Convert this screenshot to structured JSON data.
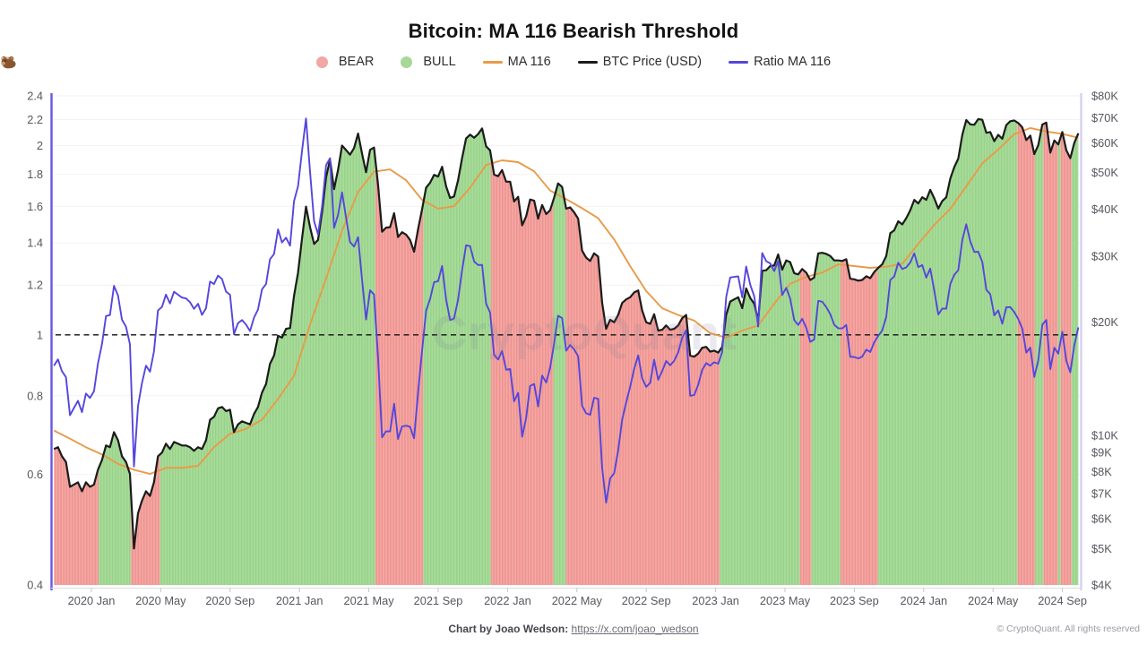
{
  "title": "Bitcoin: MA 116 Bearish Threshold",
  "watermark": "CryptoQuant",
  "legend": {
    "bear_label": "BEAR",
    "bull_label": "BULL",
    "ma_label": "MA 116",
    "price_label": "BTC Price (USD)",
    "ratio_label": "Ratio MA 116"
  },
  "footer": {
    "credit_bold": "Chart by Joao Wedson:",
    "credit_link": "https://x.com/joao_wedson",
    "copyright": "© CryptoQuant. All rights reserved"
  },
  "colors": {
    "bull_band": "#a9dc9c",
    "bull_band_stripe": "#98d289",
    "bear_band": "#f4a8a4",
    "bear_band_stripe": "#ee928f",
    "ma_line": "#e99a48",
    "price_line": "#1b1b1b",
    "ratio_line": "#5446dd",
    "threshold_line": "#111111",
    "left_axis": "#6556e4",
    "right_axis": "#d5d1f1",
    "x_axis_line": "#dcdce0",
    "tick_mark": "#c4c4ca",
    "grid": "#f2f2f5",
    "axis_text": "#57575f",
    "bear_dot": "#f2a6a6",
    "bull_dot": "#a8d79a"
  },
  "chart_data": {
    "type": "line",
    "title": "Bitcoin: MA 116 Bearish Threshold",
    "grid": "horizontal-only",
    "threshold": 1,
    "x_axis": {
      "ticks": [
        {
          "t": 2020.0,
          "label": "2020 Jan"
        },
        {
          "t": 2020.3333,
          "label": "2020 May"
        },
        {
          "t": 2020.6667,
          "label": "2020 Sep"
        },
        {
          "t": 2021.0,
          "label": "2021 Jan"
        },
        {
          "t": 2021.3333,
          "label": "2021 May"
        },
        {
          "t": 2021.6667,
          "label": "2021 Sep"
        },
        {
          "t": 2022.0,
          "label": "2022 Jan"
        },
        {
          "t": 2022.3333,
          "label": "2022 May"
        },
        {
          "t": 2022.6667,
          "label": "2022 Sep"
        },
        {
          "t": 2023.0,
          "label": "2023 Jan"
        },
        {
          "t": 2023.3333,
          "label": "2023 May"
        },
        {
          "t": 2023.6667,
          "label": "2023 Sep"
        },
        {
          "t": 2024.0,
          "label": "2024 Jan"
        },
        {
          "t": 2024.3333,
          "label": "2024 May"
        },
        {
          "t": 2024.6667,
          "label": "2024 Sep"
        }
      ]
    },
    "y_left": {
      "name": "Ratio MA 116",
      "scale": "log",
      "range": [
        0.4,
        2.4
      ],
      "ticks": [
        2.4,
        2.2,
        2,
        1.8,
        1.6,
        1.4,
        1.2,
        1,
        0.8,
        0.6,
        0.4
      ]
    },
    "y_right": {
      "name": "BTC Price",
      "scale": "log",
      "range": [
        4,
        80
      ],
      "unit": "$K",
      "ticks": [
        80,
        70,
        60,
        50,
        40,
        30,
        20,
        10,
        9,
        8,
        7,
        6,
        5,
        4
      ]
    },
    "series": {
      "price": {
        "name": "BTC Price (USD)",
        "unit": "thousand USD",
        "t0": 2019.82,
        "dt": 0.019231,
        "values": [
          9.2,
          9.3,
          8.8,
          8.5,
          7.3,
          7.4,
          7.5,
          7.1,
          7.5,
          7.3,
          7.4,
          8.1,
          8.6,
          9.4,
          9.3,
          10.2,
          9.7,
          8.8,
          8.5,
          7.9,
          5.0,
          6.2,
          6.7,
          7.1,
          6.9,
          7.5,
          8.8,
          9.0,
          9.5,
          9.2,
          9.6,
          9.5,
          9.4,
          9.4,
          9.3,
          9.1,
          9.3,
          9.2,
          9.7,
          11.0,
          11.2,
          11.8,
          11.9,
          11.6,
          11.7,
          10.2,
          10.7,
          10.9,
          10.8,
          10.7,
          11.4,
          11.9,
          13.0,
          13.7,
          15.5,
          16.3,
          18.4,
          18.2,
          19.2,
          19.3,
          23.5,
          27.1,
          33.5,
          40.6,
          35.8,
          32.3,
          33.1,
          39.2,
          48.6,
          54.1,
          45.2,
          50.9,
          59.0,
          57.4,
          55.8,
          58.1,
          63.5,
          56.2,
          50.1,
          57.5,
          58.3,
          46.4,
          34.8,
          35.7,
          35.8,
          39.0,
          33.7,
          34.7,
          34.2,
          33.1,
          30.8,
          35.4,
          39.9,
          45.6,
          47.0,
          49.3,
          48.8,
          51.8,
          46.0,
          42.8,
          43.2,
          47.7,
          54.7,
          61.6,
          63.1,
          61.9,
          63.3,
          65.5,
          58.7,
          57.3,
          49.4,
          48.9,
          50.8,
          47.3,
          47.3,
          41.9,
          43.1,
          36.2,
          38.2,
          42.4,
          42.1,
          37.7,
          41.0,
          38.8,
          39.7,
          42.9,
          46.8,
          45.8,
          40.1,
          40.4,
          39.2,
          37.7,
          31.0,
          29.7,
          29.1,
          30.5,
          29.9,
          22.5,
          19.2,
          20.3,
          20.0,
          20.9,
          22.5,
          23.0,
          23.3,
          24.0,
          24.3,
          21.5,
          20.0,
          19.8,
          21.0,
          19.0,
          19.1,
          19.6,
          19.1,
          19.2,
          19.6,
          20.5,
          20.9,
          16.3,
          16.2,
          16.5,
          17.1,
          17.2,
          16.7,
          16.8,
          16.6,
          17.2,
          20.9,
          22.7,
          23.0,
          23.3,
          21.8,
          24.6,
          23.2,
          22.4,
          20.2,
          27.4,
          27.5,
          28.2,
          28.3,
          30.3,
          27.6,
          29.2,
          28.9,
          27.0,
          26.8,
          27.7,
          27.1,
          25.9,
          26.3,
          30.5,
          30.6,
          30.4,
          30.0,
          29.2,
          29.2,
          29.1,
          29.4,
          26.1,
          26.0,
          25.8,
          25.9,
          26.5,
          26.2,
          27.2,
          27.9,
          28.5,
          30.0,
          34.5,
          35.1,
          37.1,
          36.4,
          37.8,
          39.7,
          42.3,
          41.4,
          43.0,
          42.3,
          45.0,
          42.7,
          40.1,
          42.0,
          43.0,
          48.2,
          51.7,
          54.5,
          63.0,
          69.0,
          67.2,
          67.0,
          69.4,
          69.1,
          63.8,
          64.1,
          60.6,
          63.0,
          61.5,
          66.9,
          68.5,
          68.8,
          67.7,
          66.0,
          61.0,
          62.7,
          56.0,
          59.2,
          67.1,
          67.9,
          56.5,
          60.9,
          59.4,
          64.1,
          57.3,
          54.6,
          60.0,
          63.6
        ]
      },
      "ma116": {
        "name": "MA 116",
        "unit": "thousand USD",
        "t0": 2019.82,
        "dt": 0.076923,
        "values": [
          10.3,
          9.8,
          9.3,
          8.9,
          8.4,
          8.1,
          7.9,
          8.2,
          8.2,
          8.3,
          9.3,
          10.1,
          10.4,
          11.0,
          12.5,
          14.4,
          19.7,
          26.1,
          35.0,
          44.4,
          50.3,
          51.0,
          47.7,
          42.3,
          40.1,
          40.7,
          45.6,
          52.4,
          53.9,
          53.3,
          50.4,
          44.8,
          42.5,
          40.2,
          37.8,
          33.2,
          28.2,
          24.2,
          21.8,
          20.9,
          20.2,
          18.7,
          18.2,
          19.0,
          19.6,
          22.4,
          25.3,
          26.4,
          27.1,
          28.5,
          28.2,
          27.9,
          28.1,
          28.6,
          32.3,
          36.3,
          40.0,
          46.0,
          52.9,
          57.6,
          63.3,
          65.7,
          64.3,
          63.4,
          61.9
        ]
      },
      "ratio": {
        "name": "Ratio MA 116",
        "definition": "price / ma116",
        "axis": "left"
      }
    },
    "regimes": [
      {
        "type": "bear",
        "from": 2019.82,
        "to": 2020.035
      },
      {
        "type": "bull",
        "from": 2020.035,
        "to": 2020.19
      },
      {
        "type": "bear",
        "from": 2020.19,
        "to": 2020.33
      },
      {
        "type": "bull",
        "from": 2020.33,
        "to": 2021.365
      },
      {
        "type": "bear",
        "from": 2021.365,
        "to": 2021.595
      },
      {
        "type": "bull",
        "from": 2021.595,
        "to": 2021.92
      },
      {
        "type": "bear",
        "from": 2021.92,
        "to": 2022.22
      },
      {
        "type": "bull",
        "from": 2022.22,
        "to": 2022.28
      },
      {
        "type": "bear",
        "from": 2022.28,
        "to": 2023.02
      },
      {
        "type": "bull",
        "from": 2023.02,
        "to": 2023.405
      },
      {
        "type": "bear",
        "from": 2023.405,
        "to": 2023.46
      },
      {
        "type": "bull",
        "from": 2023.46,
        "to": 2023.6
      },
      {
        "type": "bear",
        "from": 2023.6,
        "to": 2023.78
      },
      {
        "type": "bull",
        "from": 2023.78,
        "to": 2024.45
      },
      {
        "type": "bear",
        "from": 2024.45,
        "to": 2024.535
      },
      {
        "type": "bull",
        "from": 2024.535,
        "to": 2024.575
      },
      {
        "type": "bear",
        "from": 2024.575,
        "to": 2024.645
      },
      {
        "type": "bull",
        "from": 2024.645,
        "to": 2024.658
      },
      {
        "type": "bear",
        "from": 2024.658,
        "to": 2024.71
      },
      {
        "type": "bull",
        "from": 2024.71,
        "to": 2024.745
      }
    ]
  }
}
